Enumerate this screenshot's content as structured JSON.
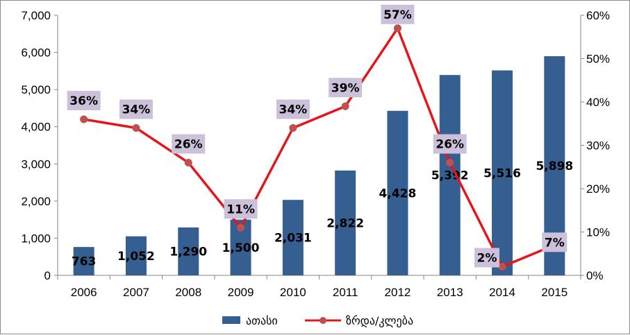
{
  "chart_data": {
    "type": "bar",
    "categories": [
      "2006",
      "2007",
      "2008",
      "2009",
      "2010",
      "2011",
      "2012",
      "2013",
      "2014",
      "2015"
    ],
    "series": [
      {
        "name": "ათასი",
        "type": "bar",
        "axis": "left",
        "color": "#365F91",
        "values": [
          763,
          1052,
          1290,
          1500,
          2031,
          2822,
          4428,
          5392,
          5516,
          5898
        ],
        "labels": [
          "763",
          "1,052",
          "1,290",
          "1,500",
          "2,031",
          "2,822",
          "4,428",
          "5,392",
          "5,516",
          "5,898"
        ]
      },
      {
        "name": "ზრდა/კლება",
        "type": "line",
        "axis": "right",
        "color": "#E8141B",
        "marker_color": "#C0504D",
        "values": [
          36,
          34,
          26,
          11,
          34,
          39,
          57,
          26,
          2,
          7
        ],
        "labels": [
          "36%",
          "34%",
          "26%",
          "11%",
          "34%",
          "39%",
          "57%",
          "26%",
          "2%",
          "7%"
        ]
      }
    ],
    "y_left": {
      "min": 0,
      "max": 7000,
      "ticks": [
        "0",
        "1,000",
        "2,000",
        "3,000",
        "4,000",
        "5,000",
        "6,000",
        "7,000"
      ]
    },
    "y_right": {
      "min": 0,
      "max": 60,
      "ticks": [
        "0%",
        "10%",
        "20%",
        "30%",
        "40%",
        "50%",
        "60%"
      ]
    },
    "grid": false,
    "legend": "bottom",
    "label_box_color": "#CCC1DA"
  }
}
